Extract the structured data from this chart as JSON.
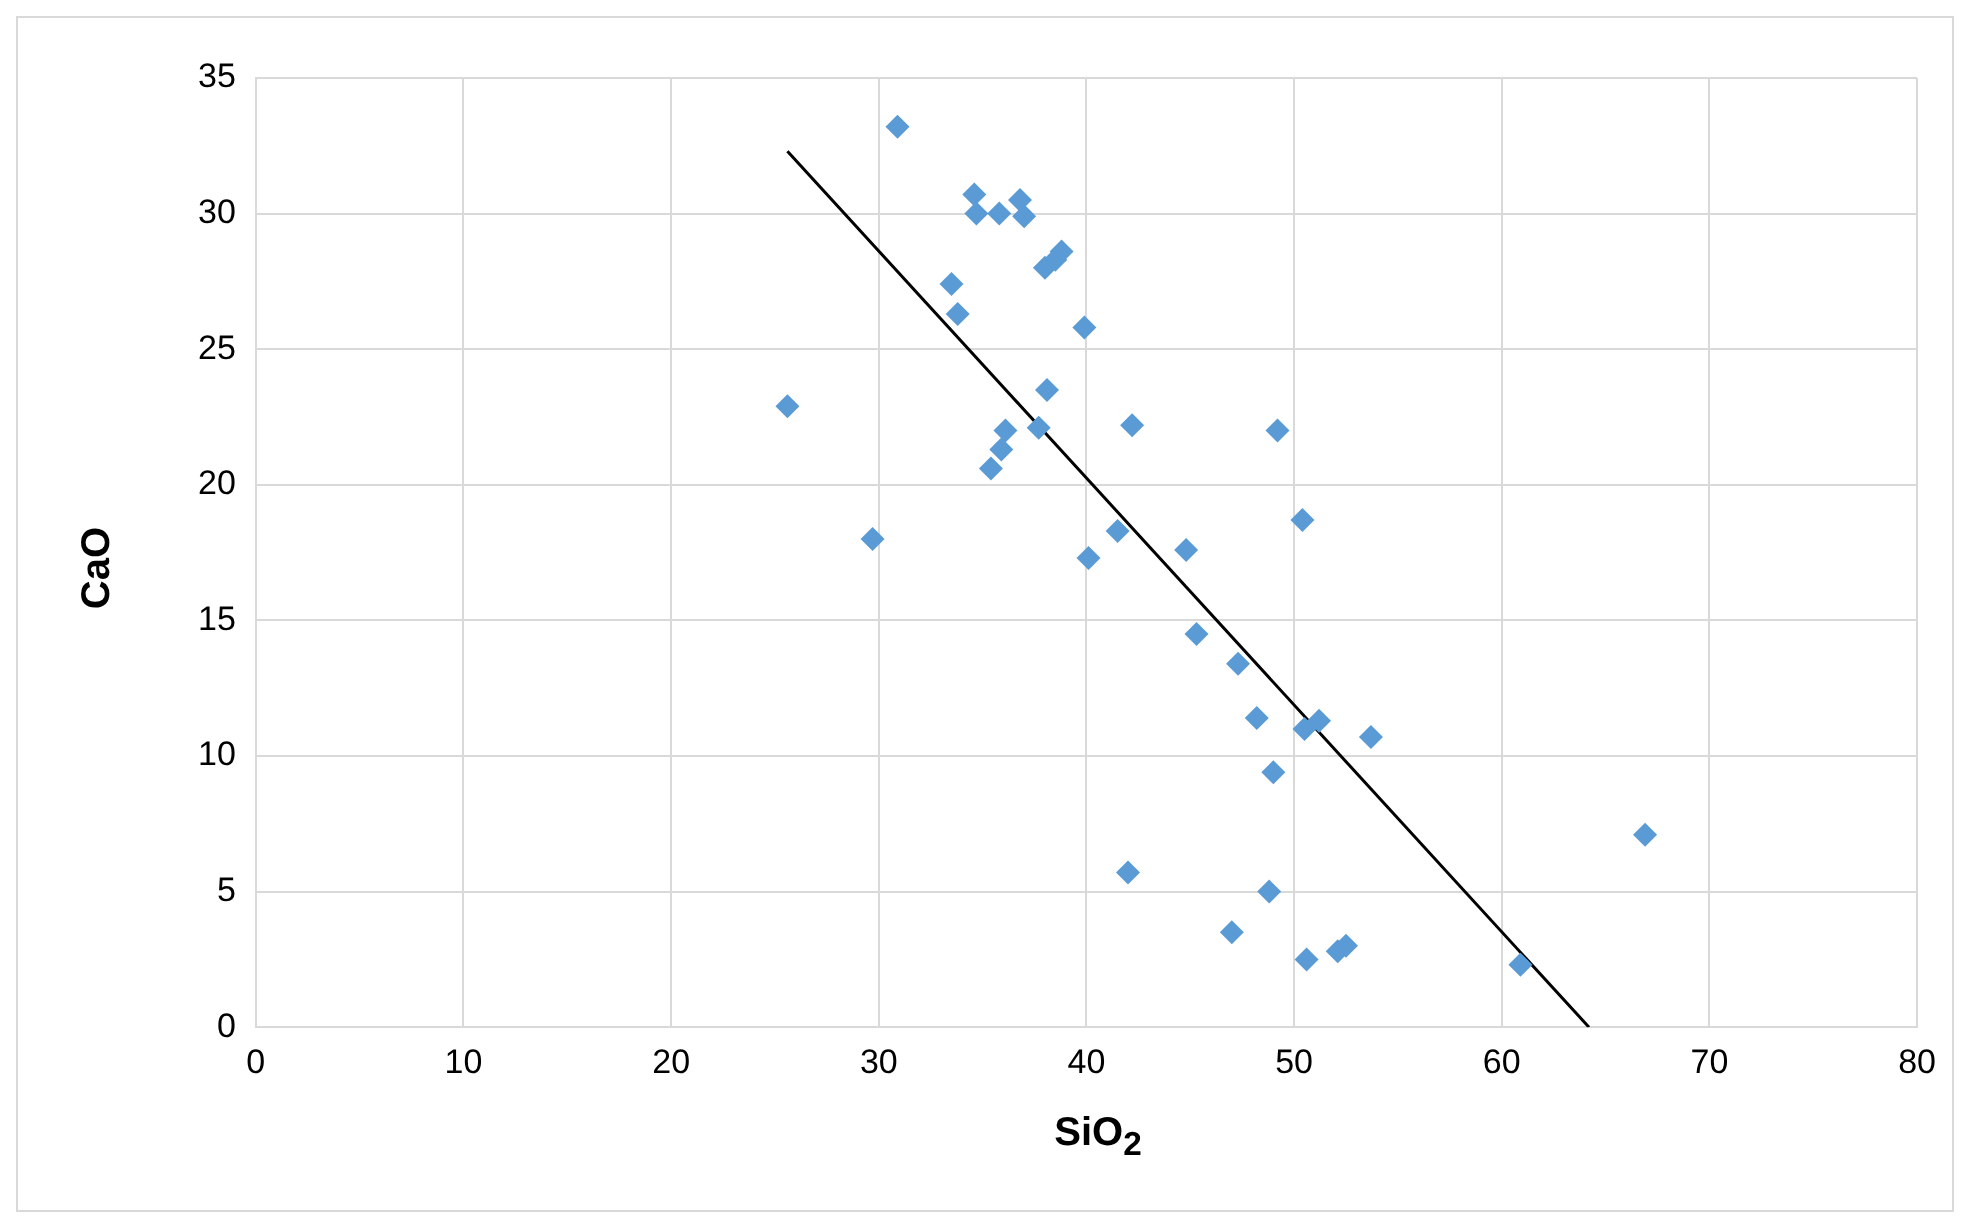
{
  "chart_data": {
    "type": "scatter",
    "xlabel": "SiO$_{2}$",
    "ylabel": "CaO",
    "xlim": [
      0,
      80
    ],
    "xticks": [
      0,
      10,
      20,
      30,
      40,
      50,
      60,
      70,
      80
    ],
    "ylim": [
      0,
      35
    ],
    "yticks": [
      0,
      5,
      10,
      15,
      20,
      25,
      30,
      35
    ],
    "grid": true,
    "legend": false,
    "marker": "diamond",
    "series": [
      {
        "color": "#5b9bd5",
        "x": [
          25.6,
          29.7,
          30.9,
          33.5,
          33.8,
          34.6,
          34.7,
          35.4,
          35.8,
          35.9,
          36.1,
          36.8,
          37.0,
          37.7,
          38.0,
          38.1,
          38.5,
          38.8,
          39.9,
          40.1,
          41.5,
          42.0,
          42.2,
          44.8,
          45.3,
          47.0,
          47.3,
          48.2,
          48.8,
          49.0,
          49.2,
          50.4,
          50.5,
          50.6,
          51.2,
          52.1,
          52.5,
          53.7,
          60.9,
          66.9
        ],
        "values": [
          22.9,
          18.0,
          33.2,
          27.4,
          26.3,
          30.7,
          30.0,
          20.6,
          30.0,
          21.3,
          22.0,
          30.5,
          29.9,
          22.1,
          28.0,
          23.5,
          28.3,
          28.6,
          25.8,
          17.3,
          18.3,
          5.7,
          22.2,
          17.6,
          14.5,
          3.5,
          13.4,
          11.4,
          5.0,
          9.4,
          22.0,
          18.7,
          11.0,
          2.5,
          11.3,
          2.8,
          3.0,
          10.7,
          2.3,
          7.1
        ]
      },
      {
        "type": "line",
        "color": "#000000",
        "marker": "none",
        "x": [
          25.6,
          64.2
        ],
        "values": [
          32.3,
          0
        ]
      }
    ]
  }
}
